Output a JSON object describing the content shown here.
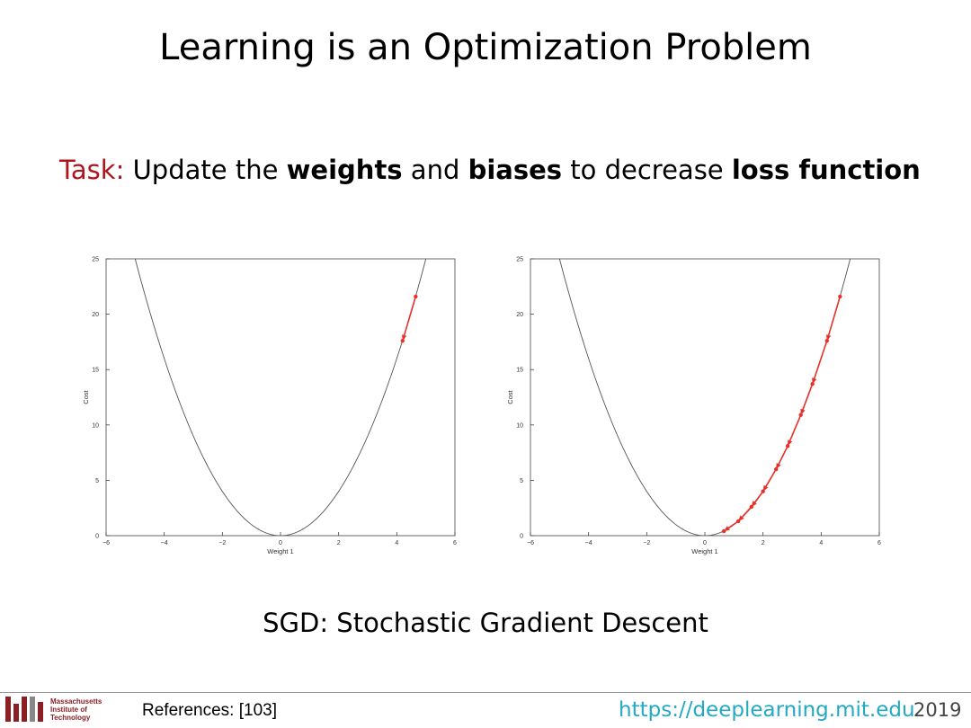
{
  "slide": {
    "title": "Learning is an Optimization Problem",
    "task_label": "Task:",
    "task_parts": [
      "Update the ",
      "weights",
      " and ",
      "biases",
      " to decrease ",
      "loss function"
    ],
    "subtitle": "SGD: Stochastic Gradient Descent"
  },
  "footer": {
    "logo_lines": [
      "Massachusetts",
      "Institute of",
      "Technology"
    ],
    "references": "References: [103]",
    "url": "https://deeplearning.mit.edu",
    "year": "2019"
  },
  "colors": {
    "accent_red": "#b0151b",
    "curve": "#555555",
    "step": "#e8312a",
    "url": "#22a9c6",
    "logo": "#8b1f24"
  },
  "chart_data": [
    {
      "type": "line",
      "xlabel": "Weight 1",
      "ylabel": "Cost",
      "xlim": [
        -6,
        6
      ],
      "ylim": [
        0,
        25
      ],
      "xticks": [
        "−6",
        "−4",
        "−2",
        "0",
        "2",
        "4",
        "6"
      ],
      "yticks": [
        "0",
        "5",
        "10",
        "15",
        "20",
        "25"
      ],
      "series": [
        {
          "function": "x^2",
          "x_range": [
            -6,
            6
          ]
        },
        {
          "x": [
            4.65,
            4.2
          ],
          "y": [
            21.6,
            17.6
          ]
        }
      ]
    },
    {
      "type": "line",
      "xlabel": "Weight 1",
      "ylabel": "Cost",
      "xlim": [
        -6,
        6
      ],
      "ylim": [
        0,
        25
      ],
      "xticks": [
        "−6",
        "−4",
        "−2",
        "0",
        "2",
        "4",
        "6"
      ],
      "yticks": [
        "0",
        "5",
        "10",
        "15",
        "20",
        "25"
      ],
      "series": [
        {
          "function": "x^2",
          "x_range": [
            -6,
            6
          ]
        },
        {
          "x": [
            4.65,
            4.2,
            3.7,
            3.3,
            2.85,
            2.45,
            2.0,
            1.6,
            1.15,
            0.65
          ],
          "y": [
            21.6,
            17.6,
            13.7,
            10.9,
            8.1,
            6.0,
            4.0,
            2.6,
            1.3,
            0.4
          ]
        }
      ]
    }
  ]
}
